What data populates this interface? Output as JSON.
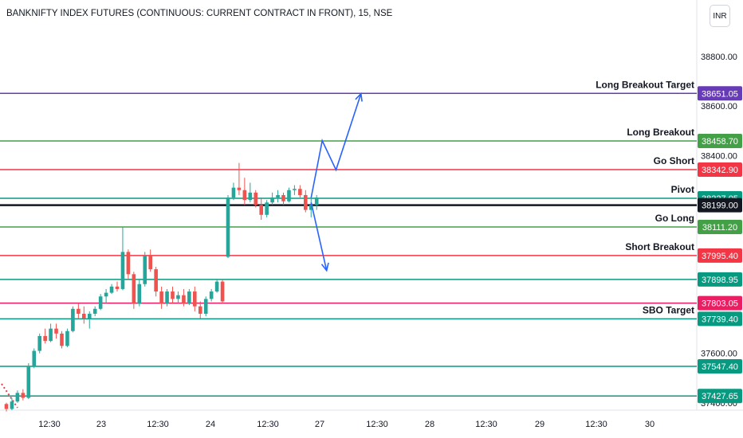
{
  "header": {
    "title": "BANKNIFTY INDEX FUTURES (CONTINUOUS: CURRENT CONTRACT IN FRONT), 15, NSE",
    "currency": "INR"
  },
  "chart_data": {
    "type": "candlestick",
    "title": "BANKNIFTY INDEX FUTURES (CONTINUOUS: CURRENT CONTRACT IN FRONT), 15, NSE",
    "ylim": [
      37380,
      38900
    ],
    "price_ticks": [
      "38800.00",
      "38600.00",
      "38400.00",
      "37600.00",
      "37400.00"
    ],
    "time_ticks": [
      "12:30",
      "23",
      "12:30",
      "24",
      "12:30",
      "27",
      "12:30",
      "28",
      "12:30",
      "29",
      "12:30",
      "30"
    ],
    "current_price": {
      "value": 38199.0,
      "label": "38199.00",
      "color": "#131722"
    },
    "levels": [
      {
        "name": "Long Breakout Target",
        "value": 38651.05,
        "label": "38651.05",
        "color": "#673ab7"
      },
      {
        "name": "Long Breakout",
        "value": 38458.7,
        "label": "38458.70",
        "color": "#43a047"
      },
      {
        "name": "Go Short",
        "value": 38342.9,
        "label": "38342.90",
        "color": "#f23645"
      },
      {
        "name": "Pivot",
        "value": 38227.05,
        "label": "38227.05",
        "color": "#089981"
      },
      {
        "name": "Go Long",
        "value": 38111.2,
        "label": "38111.20",
        "color": "#43a047"
      },
      {
        "name": "Short Breakout",
        "value": 37995.4,
        "label": "37995.40",
        "color": "#f23645"
      },
      {
        "name": "",
        "value": 37898.95,
        "label": "37898.95",
        "color": "#089981"
      },
      {
        "name": "",
        "value": 37803.05,
        "label": "37803.05",
        "color": "#e91e63"
      },
      {
        "name": "SBO Target",
        "value": 37739.4,
        "label": "37739.40",
        "color": "#089981"
      },
      {
        "name": "",
        "value": 37547.4,
        "label": "37547.40",
        "color": "#089981"
      },
      {
        "name": "",
        "value": 37427.65,
        "label": "37427.65",
        "color": "#089981"
      }
    ],
    "candles": [
      [
        37395,
        37400,
        37365,
        37375
      ],
      [
        37375,
        37420,
        37370,
        37405
      ],
      [
        37405,
        37450,
        37400,
        37440
      ],
      [
        37440,
        37455,
        37410,
        37420
      ],
      [
        37420,
        37560,
        37415,
        37545
      ],
      [
        37545,
        37620,
        37540,
        37610
      ],
      [
        37610,
        37680,
        37600,
        37670
      ],
      [
        37670,
        37700,
        37640,
        37650
      ],
      [
        37650,
        37720,
        37645,
        37700
      ],
      [
        37700,
        37720,
        37660,
        37680
      ],
      [
        37680,
        37690,
        37620,
        37630
      ],
      [
        37630,
        37700,
        37625,
        37690
      ],
      [
        37690,
        37790,
        37685,
        37780
      ],
      [
        37780,
        37800,
        37740,
        37760
      ],
      [
        37760,
        37790,
        37720,
        37740
      ],
      [
        37740,
        37770,
        37700,
        37760
      ],
      [
        37760,
        37790,
        37750,
        37780
      ],
      [
        37780,
        37840,
        37775,
        37830
      ],
      [
        37830,
        37860,
        37800,
        37845
      ],
      [
        37845,
        37880,
        37840,
        37870
      ],
      [
        37870,
        37890,
        37850,
        37860
      ],
      [
        37860,
        38110,
        37855,
        38010
      ],
      [
        38010,
        38020,
        37900,
        37920
      ],
      [
        37920,
        37930,
        37780,
        37800
      ],
      [
        37800,
        37900,
        37790,
        37880
      ],
      [
        37880,
        38010,
        37870,
        37995
      ],
      [
        37995,
        38020,
        37930,
        37940
      ],
      [
        37940,
        37950,
        37830,
        37850
      ],
      [
        37850,
        37870,
        37780,
        37800
      ],
      [
        37800,
        37860,
        37790,
        37850
      ],
      [
        37850,
        37870,
        37800,
        37820
      ],
      [
        37820,
        37850,
        37800,
        37835
      ],
      [
        37835,
        37860,
        37790,
        37800
      ],
      [
        37800,
        37860,
        37795,
        37850
      ],
      [
        37850,
        37870,
        37770,
        37790
      ],
      [
        37790,
        37810,
        37740,
        37760
      ],
      [
        37760,
        37830,
        37750,
        37820
      ],
      [
        37820,
        37860,
        37810,
        37850
      ],
      [
        37850,
        37900,
        37845,
        37890
      ],
      [
        37890,
        37900,
        37800,
        37810
      ],
      [
        37990,
        38240,
        37985,
        38230
      ],
      [
        38230,
        38290,
        38220,
        38270
      ],
      [
        38270,
        38370,
        38240,
        38260
      ],
      [
        38260,
        38310,
        38200,
        38220
      ],
      [
        38220,
        38290,
        38210,
        38250
      ],
      [
        38250,
        38260,
        38190,
        38200
      ],
      [
        38200,
        38230,
        38140,
        38160
      ],
      [
        38160,
        38220,
        38150,
        38210
      ],
      [
        38210,
        38250,
        38200,
        38230
      ],
      [
        38230,
        38260,
        38210,
        38240
      ],
      [
        38240,
        38250,
        38200,
        38215
      ],
      [
        38215,
        38270,
        38210,
        38260
      ],
      [
        38260,
        38280,
        38240,
        38265
      ],
      [
        38265,
        38280,
        38230,
        38240
      ],
      [
        38240,
        38260,
        38170,
        38180
      ],
      [
        38180,
        38230,
        38150,
        38200
      ],
      [
        38200,
        38240,
        38180,
        38230
      ]
    ],
    "annotations": [
      {
        "type": "arrow",
        "name": "long-projection-arrow",
        "color": "#2962ff",
        "points": [
          [
            55,
            38230
          ],
          [
            57,
            38460
          ],
          [
            59.5,
            38342
          ],
          [
            64,
            38650
          ]
        ]
      },
      {
        "type": "arrow",
        "name": "short-projection-arrow",
        "color": "#2962ff",
        "points": [
          [
            55,
            38210
          ],
          [
            57.8,
            37935
          ]
        ]
      }
    ]
  }
}
